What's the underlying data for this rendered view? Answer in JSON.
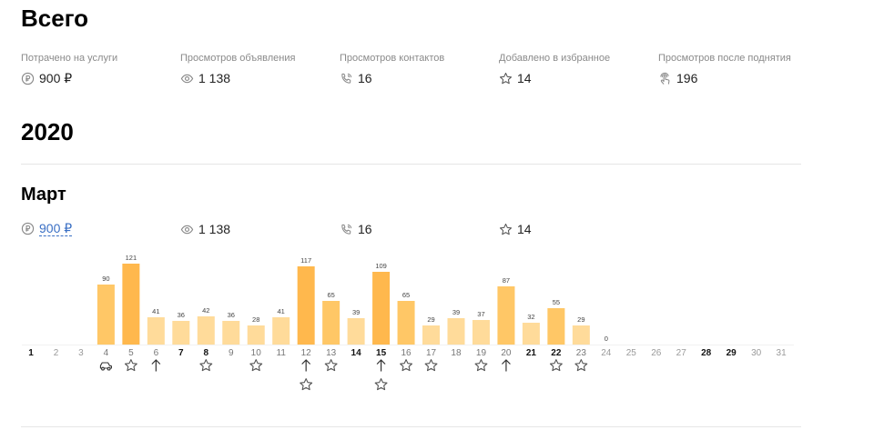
{
  "totals": {
    "title": "Всего",
    "stats": [
      {
        "label": "Потрачено на услуги",
        "value": "900 ₽",
        "icon": "ruble-icon"
      },
      {
        "label": "Просмотров объявления",
        "value": "1 138",
        "icon": "eye-icon"
      },
      {
        "label": "Просмотров контактов",
        "value": "16",
        "icon": "phone-icon"
      },
      {
        "label": "Добавлено в избранное",
        "value": "14",
        "icon": "star-icon"
      },
      {
        "label": "Просмотров после поднятия",
        "value": "196",
        "icon": "touch-icon"
      }
    ]
  },
  "year": "2020",
  "month": {
    "title": "Март",
    "spent": "900 ₽",
    "views": "1 138",
    "contacts": "16",
    "favorites": "14"
  },
  "colors": {
    "bar_light": "#ffdb9a",
    "bar_medium": "#ffc766",
    "bar_dark": "#ffb84d",
    "link": "#3a6fc4"
  },
  "chart_data": {
    "type": "bar",
    "categories": [
      "1",
      "2",
      "3",
      "4",
      "5",
      "6",
      "7",
      "8",
      "9",
      "10",
      "11",
      "12",
      "13",
      "14",
      "15",
      "16",
      "17",
      "18",
      "19",
      "20",
      "21",
      "22",
      "23",
      "24",
      "25",
      "26",
      "27",
      "28",
      "29",
      "30",
      "31"
    ],
    "values": [
      null,
      null,
      null,
      90,
      121,
      41,
      36,
      42,
      36,
      28,
      41,
      117,
      65,
      39,
      109,
      65,
      29,
      39,
      37,
      87,
      32,
      55,
      29,
      0,
      null,
      null,
      null,
      null,
      null,
      null,
      null
    ],
    "bold_days": [
      "1",
      "7",
      "8",
      "14",
      "15",
      "21",
      "22",
      "28",
      "29"
    ],
    "inactive_days": [
      "2",
      "3",
      "24",
      "25",
      "26",
      "27",
      "30",
      "31"
    ],
    "bar_intensity": [
      null,
      null,
      null,
      "medium",
      "dark",
      "light",
      "light",
      "light",
      "light",
      "light",
      "light",
      "dark",
      "medium",
      "light",
      "dark",
      "medium",
      "light",
      "light",
      "light",
      "medium",
      "light",
      "medium",
      "light",
      "light",
      null,
      null,
      null,
      null,
      null,
      null,
      null
    ],
    "day_icons": {
      "4": [
        "car-icon"
      ],
      "5": [
        "star-icon"
      ],
      "6": [
        "arrow-up-icon"
      ],
      "8": [
        "star-icon"
      ],
      "10": [
        "star-icon"
      ],
      "12": [
        "arrow-up-icon",
        "star-icon"
      ],
      "13": [
        "star-icon"
      ],
      "15": [
        "arrow-up-icon",
        "star-icon"
      ],
      "16": [
        "star-icon"
      ],
      "17": [
        "star-icon"
      ],
      "19": [
        "star-icon"
      ],
      "20": [
        "arrow-up-icon"
      ],
      "22": [
        "star-icon"
      ],
      "23": [
        "star-icon"
      ]
    },
    "ylim": [
      0,
      121
    ],
    "grid": false,
    "legend": "none"
  }
}
